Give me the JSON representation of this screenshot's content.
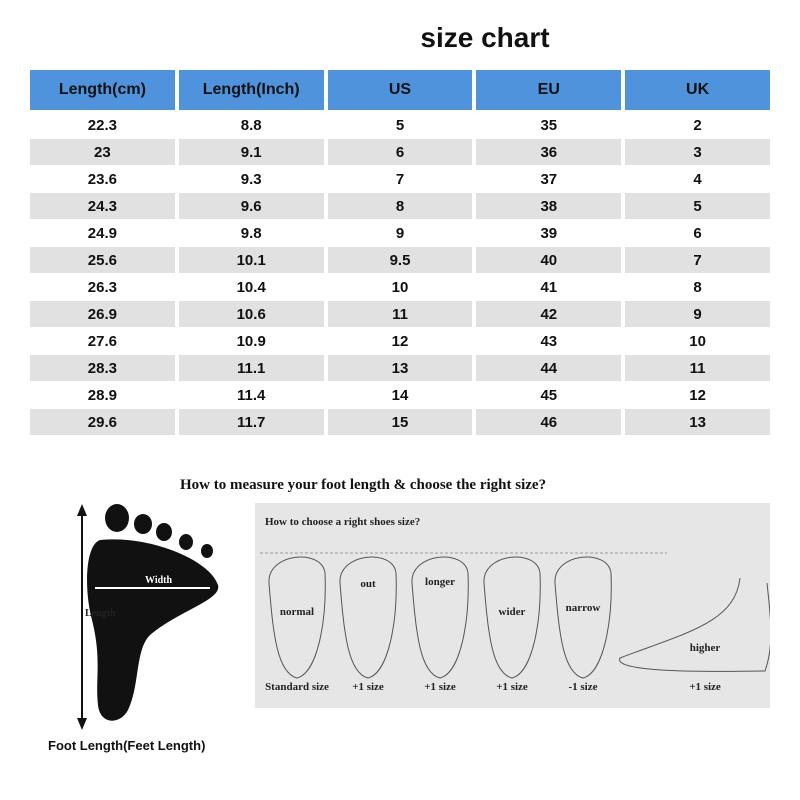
{
  "title": "size chart",
  "table": {
    "headers": [
      "Length(cm)",
      "Length(Inch)",
      "US",
      "EU",
      "UK"
    ],
    "rows": [
      [
        "22.3",
        "8.8",
        "5",
        "35",
        "2"
      ],
      [
        "23",
        "9.1",
        "6",
        "36",
        "3"
      ],
      [
        "23.6",
        "9.3",
        "7",
        "37",
        "4"
      ],
      [
        "24.3",
        "9.6",
        "8",
        "38",
        "5"
      ],
      [
        "24.9",
        "9.8",
        "9",
        "39",
        "6"
      ],
      [
        "25.6",
        "10.1",
        "9.5",
        "40",
        "7"
      ],
      [
        "26.3",
        "10.4",
        "10",
        "41",
        "8"
      ],
      [
        "26.9",
        "10.6",
        "11",
        "42",
        "9"
      ],
      [
        "27.6",
        "10.9",
        "12",
        "43",
        "10"
      ],
      [
        "28.3",
        "11.1",
        "13",
        "44",
        "11"
      ],
      [
        "28.9",
        "11.4",
        "14",
        "45",
        "12"
      ],
      [
        "29.6",
        "11.7",
        "15",
        "46",
        "13"
      ]
    ]
  },
  "measure": {
    "heading": "How to measure your foot length & choose the right size?",
    "width_label": "Width",
    "length_label": "Length",
    "caption": "Foot Length(Feet Length)"
  },
  "choose": {
    "heading": "How to choose a right shoes size?",
    "feet": [
      {
        "label": "normal",
        "size": "Standard size"
      },
      {
        "label": "out",
        "size": "+1 size"
      },
      {
        "label": "longer",
        "size": "+1 size"
      },
      {
        "label": "wider",
        "size": "+1 size"
      },
      {
        "label": "narrow",
        "size": "-1 size"
      },
      {
        "label": "higher",
        "size": "+1 size"
      }
    ]
  },
  "colors": {
    "header": "#4f93dc",
    "stripe": "#e1e1e1"
  }
}
